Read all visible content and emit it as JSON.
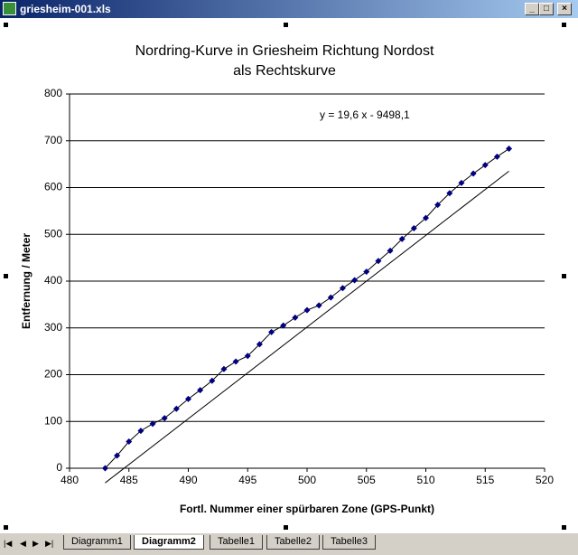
{
  "window_title": "griesheim-001.xls",
  "sheet_tabs": [
    "Diagramm1",
    "Diagramm2",
    "Tabelle1",
    "Tabelle2",
    "Tabelle3"
  ],
  "active_tab": 1,
  "chart_data": {
    "type": "scatter",
    "title": "Nordring-Kurve in Griesheim Richtung Nordost",
    "subtitle": "als Rechtskurve",
    "x_label": "Fortl. Nummer einer spürbaren Zone  (GPS-Punkt)",
    "y_label": "Entfernung / Meter",
    "xlim": [
      480,
      520
    ],
    "xticks": [
      480,
      485,
      490,
      495,
      500,
      505,
      510,
      515,
      520
    ],
    "ylim": [
      0,
      800
    ],
    "yticks": [
      0,
      100,
      200,
      300,
      400,
      500,
      600,
      700,
      800
    ],
    "grid": true,
    "series": [
      {
        "color": "#000080",
        "line_color": "#000000",
        "x": [
          483,
          484,
          485,
          486,
          487,
          488,
          489,
          490,
          491,
          492,
          493,
          494,
          495,
          496,
          497,
          498,
          499,
          500,
          501,
          502,
          503,
          504,
          505,
          506,
          507,
          508,
          509,
          510,
          511,
          512,
          513,
          514,
          515,
          516,
          517
        ],
        "values": [
          0,
          27,
          57,
          80,
          95,
          107,
          127,
          148,
          167,
          187,
          212,
          228,
          240,
          265,
          291,
          305,
          322,
          338,
          348,
          365,
          385,
          402,
          420,
          443,
          465,
          490,
          513,
          535,
          563,
          588,
          610,
          630,
          648,
          666,
          683
        ]
      }
    ],
    "trendline": {
      "slope": 19.6,
      "intercept": -9498.1,
      "label": "y = 19,6 x - 9498,1",
      "color": "#000000"
    }
  }
}
